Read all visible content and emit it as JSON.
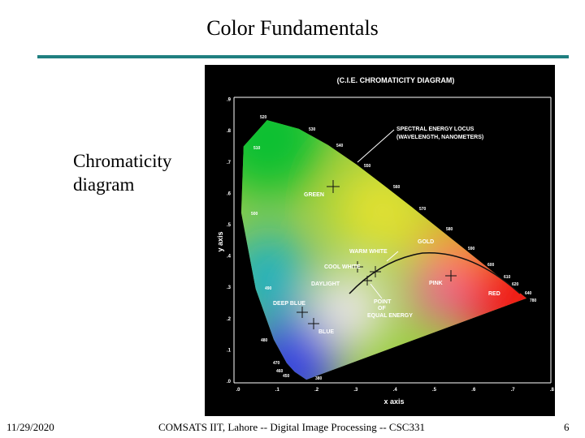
{
  "header": {
    "title": "Color Fundamentals"
  },
  "body": {
    "caption_lines": [
      "Chromaticity",
      "diagram"
    ]
  },
  "figure": {
    "title": "(C.I.E. CHROMATICITY  DIAGRAM)",
    "x_axis": "x axis",
    "y_axis": "y axis",
    "x_ticks": [
      ".0",
      ".1",
      ".2",
      ".3",
      ".4",
      ".5",
      ".6",
      ".7",
      ".8"
    ],
    "y_ticks": [
      ".0",
      ".1",
      ".2",
      ".3",
      ".4",
      ".5",
      ".6",
      ".7",
      ".8",
      ".9"
    ],
    "wavelengths": [
      "520",
      "510",
      "530",
      "540",
      "550",
      "560",
      "570",
      "580",
      "590",
      "600",
      "610",
      "620",
      "640",
      "780",
      "500",
      "490",
      "480",
      "470",
      "460",
      "450",
      "380"
    ],
    "callouts": [
      "SPECTRAL ENERGY LOCUS",
      "(WAVELENGTH, NANOMETERS)",
      "GREEN",
      "GOLD",
      "WARM WHITE",
      "COOL WHITE",
      "DAYLIGHT",
      "PINK",
      "RED",
      "DEEP BLUE",
      "BLUE",
      "POINT",
      "OF",
      "EQUAL ENERGY"
    ]
  },
  "footer": {
    "date": "11/29/2020",
    "course": "COMSATS IIT, Lahore  --  Digital Image Processing  --  CSC331",
    "page": "6"
  }
}
